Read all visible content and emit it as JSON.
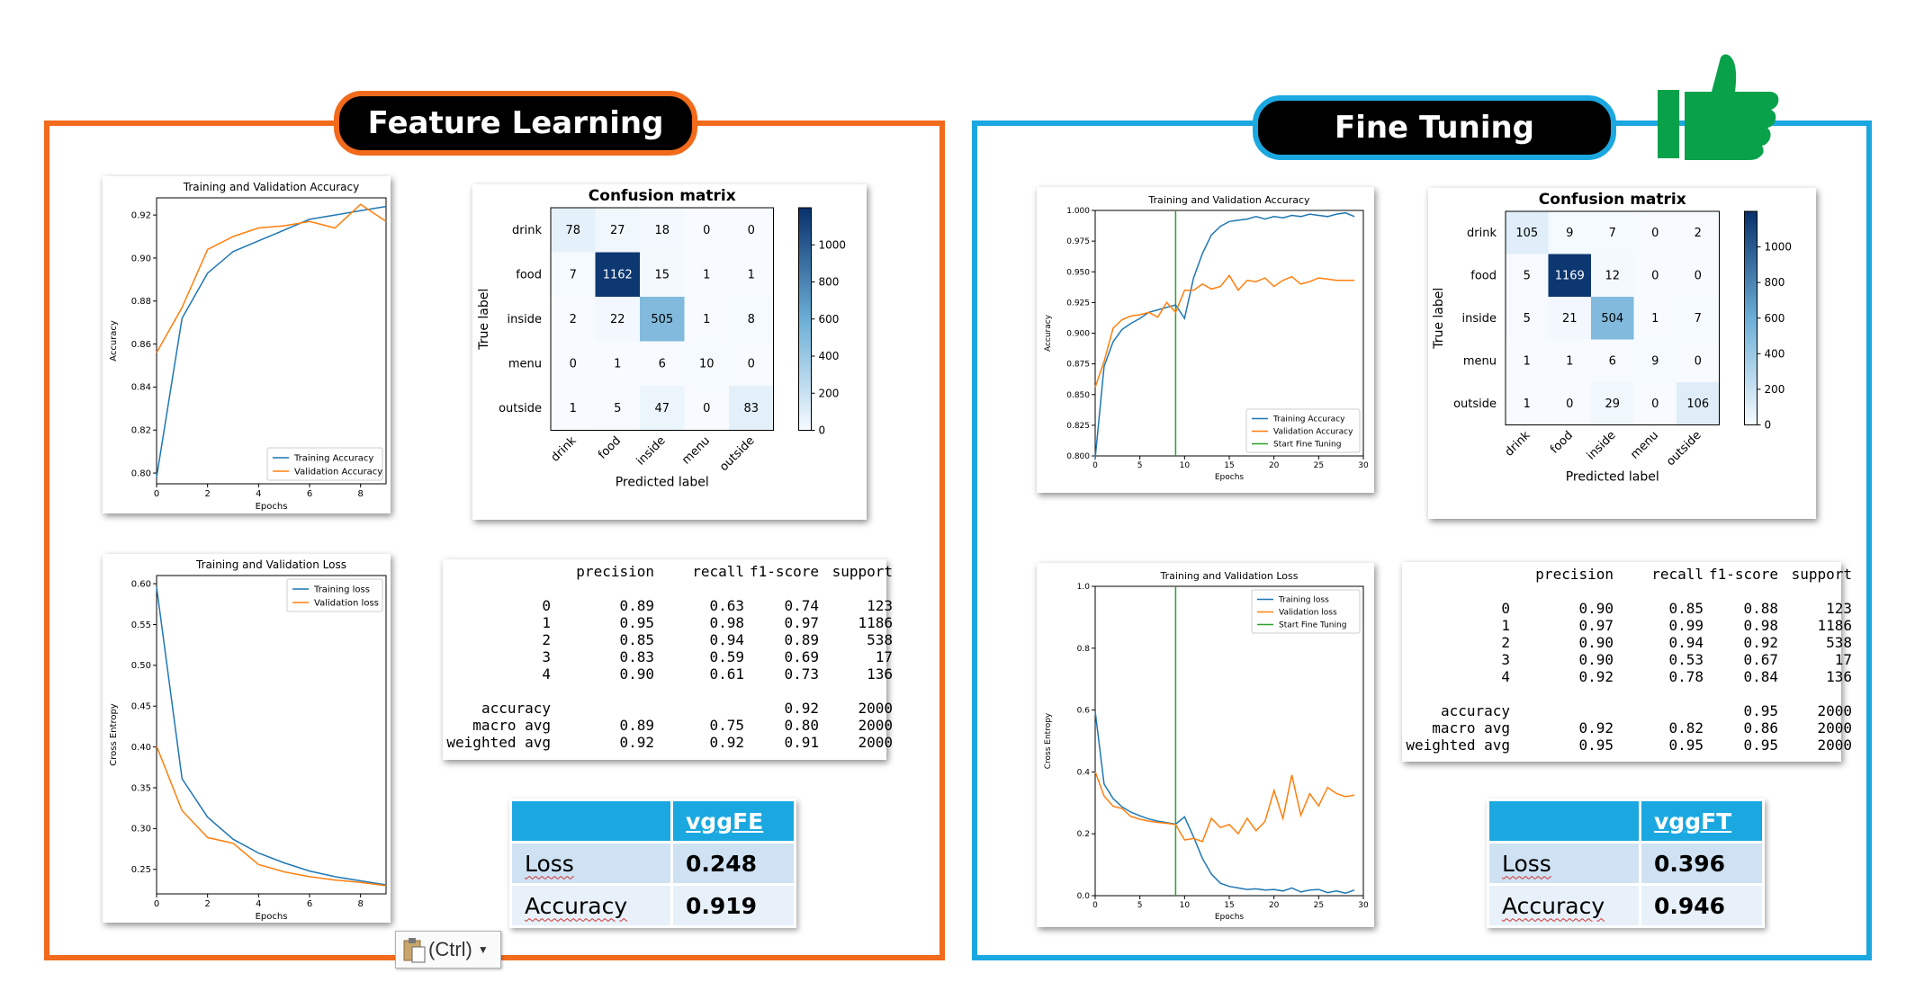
{
  "left": {
    "title": "Feature Learning",
    "acc_chart": {
      "title": "Training and Validation Accuracy",
      "xlabel": "Epochs",
      "ylabel": "Accuracy",
      "xticks": [
        "0",
        "2",
        "4",
        "6",
        "8"
      ],
      "yticks": [
        "0.80",
        "0.82",
        "0.84",
        "0.86",
        "0.88",
        "0.90",
        "0.92"
      ],
      "legend": [
        "Training Accuracy",
        "Validation Accuracy"
      ]
    },
    "loss_chart": {
      "title": "Training and Validation Loss",
      "xlabel": "Epochs",
      "ylabel": "Cross Entropy",
      "xticks": [
        "0",
        "2",
        "4",
        "6",
        "8"
      ],
      "yticks": [
        "0.25",
        "0.30",
        "0.35",
        "0.40",
        "0.45",
        "0.50",
        "0.55",
        "0.60"
      ],
      "legend": [
        "Training loss",
        "Validation loss"
      ]
    },
    "confusion": {
      "title": "Confusion matrix",
      "xlabel": "Predicted label",
      "ylabel": "True label",
      "labels": [
        "drink",
        "food",
        "inside",
        "menu",
        "outside"
      ],
      "colorbar_ticks": [
        "1000",
        "800",
        "600",
        "400",
        "200",
        "0"
      ],
      "matrix": [
        [
          78,
          27,
          18,
          0,
          0
        ],
        [
          7,
          1162,
          15,
          1,
          1
        ],
        [
          2,
          22,
          505,
          1,
          8
        ],
        [
          0,
          1,
          6,
          10,
          0
        ],
        [
          1,
          5,
          47,
          0,
          83
        ]
      ]
    },
    "report": {
      "headers": [
        "precision",
        "recall",
        "f1-score",
        "support"
      ],
      "rows": [
        [
          "0",
          "0.89",
          "0.63",
          "0.74",
          "123"
        ],
        [
          "1",
          "0.95",
          "0.98",
          "0.97",
          "1186"
        ],
        [
          "2",
          "0.85",
          "0.94",
          "0.89",
          "538"
        ],
        [
          "3",
          "0.83",
          "0.59",
          "0.69",
          "17"
        ],
        [
          "4",
          "0.90",
          "0.61",
          "0.73",
          "136"
        ]
      ],
      "summary": [
        [
          "accuracy",
          "",
          "",
          "0.92",
          "2000"
        ],
        [
          "macro avg",
          "0.89",
          "0.75",
          "0.80",
          "2000"
        ],
        [
          "weighted avg",
          "0.92",
          "0.92",
          "0.91",
          "2000"
        ]
      ]
    },
    "metrics": {
      "model": "vggFE",
      "loss_label": "Loss",
      "loss": "0.248",
      "acc_label": "Accuracy",
      "acc": "0.919"
    }
  },
  "right": {
    "title": "Fine Tuning",
    "acc_chart": {
      "title": "Training and Validation Accuracy",
      "xlabel": "Epochs",
      "ylabel": "Accuracy",
      "xticks": [
        "0",
        "5",
        "10",
        "15",
        "20",
        "25",
        "30"
      ],
      "yticks": [
        "0.800",
        "0.825",
        "0.850",
        "0.875",
        "0.900",
        "0.925",
        "0.950",
        "0.975",
        "1.000"
      ],
      "legend": [
        "Training Accuracy",
        "Validation Accuracy",
        "Start Fine Tuning"
      ]
    },
    "loss_chart": {
      "title": "Training and Validation Loss",
      "xlabel": "Epochs",
      "ylabel": "Cross Entropy",
      "xticks": [
        "0",
        "5",
        "10",
        "15",
        "20",
        "25",
        "30"
      ],
      "yticks": [
        "0.0",
        "0.2",
        "0.4",
        "0.6",
        "0.8",
        "1.0"
      ],
      "legend": [
        "Training loss",
        "Validation loss",
        "Start Fine Tuning"
      ]
    },
    "confusion": {
      "title": "Confusion matrix",
      "xlabel": "Predicted label",
      "ylabel": "True label",
      "labels": [
        "drink",
        "food",
        "inside",
        "menu",
        "outside"
      ],
      "colorbar_ticks": [
        "1000",
        "800",
        "600",
        "400",
        "200",
        "0"
      ],
      "matrix": [
        [
          105,
          9,
          7,
          0,
          2
        ],
        [
          5,
          1169,
          12,
          0,
          0
        ],
        [
          5,
          21,
          504,
          1,
          7
        ],
        [
          1,
          1,
          6,
          9,
          0
        ],
        [
          1,
          0,
          29,
          0,
          106
        ]
      ]
    },
    "report": {
      "headers": [
        "precision",
        "recall",
        "f1-score",
        "support"
      ],
      "rows": [
        [
          "0",
          "0.90",
          "0.85",
          "0.88",
          "123"
        ],
        [
          "1",
          "0.97",
          "0.99",
          "0.98",
          "1186"
        ],
        [
          "2",
          "0.90",
          "0.94",
          "0.92",
          "538"
        ],
        [
          "3",
          "0.90",
          "0.53",
          "0.67",
          "17"
        ],
        [
          "4",
          "0.92",
          "0.78",
          "0.84",
          "136"
        ]
      ],
      "summary": [
        [
          "accuracy",
          "",
          "",
          "0.95",
          "2000"
        ],
        [
          "macro avg",
          "0.92",
          "0.82",
          "0.86",
          "2000"
        ],
        [
          "weighted avg",
          "0.95",
          "0.95",
          "0.95",
          "2000"
        ]
      ]
    },
    "metrics": {
      "model": "vggFT",
      "loss_label": "Loss",
      "loss": "0.396",
      "acc_label": "Accuracy",
      "acc": "0.946"
    }
  },
  "paste_button": {
    "label": "(Ctrl)"
  },
  "colors": {
    "orange": "#f26a1b",
    "blue": "#1ba8e0",
    "training": "#1f77b4",
    "validation": "#ff7f0e",
    "finetune": "#2ca02c",
    "thumb": "#0aa14b"
  },
  "chart_data": [
    {
      "type": "line",
      "id": "fe-acc",
      "title": "Training and Validation Accuracy",
      "xlabel": "Epochs",
      "ylabel": "Accuracy",
      "xlim": [
        0,
        9
      ],
      "ylim": [
        0.795,
        0.928
      ],
      "series": [
        {
          "name": "Training Accuracy",
          "x": [
            0,
            1,
            2,
            3,
            4,
            5,
            6,
            7,
            8,
            9
          ],
          "values": [
            0.798,
            0.872,
            0.893,
            0.903,
            0.908,
            0.913,
            0.918,
            0.92,
            0.922,
            0.924
          ]
        },
        {
          "name": "Validation Accuracy",
          "x": [
            0,
            1,
            2,
            3,
            4,
            5,
            6,
            7,
            8,
            9
          ],
          "values": [
            0.856,
            0.877,
            0.904,
            0.91,
            0.914,
            0.915,
            0.917,
            0.914,
            0.925,
            0.917
          ]
        }
      ]
    },
    {
      "type": "line",
      "id": "fe-loss",
      "title": "Training and Validation Loss",
      "xlabel": "Epochs",
      "ylabel": "Cross Entropy",
      "xlim": [
        0,
        9
      ],
      "ylim": [
        0.22,
        0.61
      ],
      "series": [
        {
          "name": "Training loss",
          "x": [
            0,
            1,
            2,
            3,
            4,
            5,
            6,
            7,
            8,
            9
          ],
          "values": [
            0.596,
            0.361,
            0.314,
            0.287,
            0.27,
            0.258,
            0.248,
            0.241,
            0.236,
            0.231
          ]
        },
        {
          "name": "Validation loss",
          "x": [
            0,
            1,
            2,
            3,
            4,
            5,
            6,
            7,
            8,
            9
          ],
          "values": [
            0.401,
            0.322,
            0.289,
            0.282,
            0.256,
            0.247,
            0.241,
            0.237,
            0.234,
            0.23
          ]
        }
      ]
    },
    {
      "type": "line",
      "id": "ft-acc",
      "title": "Training and Validation Accuracy",
      "xlabel": "Epochs",
      "ylabel": "Accuracy",
      "xlim": [
        0,
        30
      ],
      "ylim": [
        0.8,
        1.0
      ],
      "vline": 9,
      "series": [
        {
          "name": "Training Accuracy",
          "x": [
            0,
            1,
            2,
            3,
            4,
            5,
            6,
            7,
            8,
            9,
            10,
            11,
            12,
            13,
            14,
            15,
            16,
            17,
            18,
            19,
            20,
            21,
            22,
            23,
            24,
            25,
            26,
            27,
            28,
            29
          ],
          "values": [
            0.798,
            0.873,
            0.893,
            0.903,
            0.908,
            0.912,
            0.917,
            0.919,
            0.921,
            0.923,
            0.912,
            0.945,
            0.965,
            0.98,
            0.987,
            0.991,
            0.992,
            0.993,
            0.995,
            0.993,
            0.995,
            0.994,
            0.996,
            0.995,
            0.997,
            0.996,
            0.995,
            0.997,
            0.998,
            0.995
          ]
        },
        {
          "name": "Validation Accuracy",
          "x": [
            0,
            1,
            2,
            3,
            4,
            5,
            6,
            7,
            8,
            9,
            10,
            11,
            12,
            13,
            14,
            15,
            16,
            17,
            18,
            19,
            20,
            21,
            22,
            23,
            24,
            25,
            26,
            27,
            28,
            29
          ],
          "values": [
            0.856,
            0.877,
            0.904,
            0.911,
            0.914,
            0.915,
            0.917,
            0.913,
            0.925,
            0.917,
            0.935,
            0.935,
            0.94,
            0.936,
            0.938,
            0.947,
            0.935,
            0.943,
            0.942,
            0.945,
            0.938,
            0.943,
            0.946,
            0.94,
            0.942,
            0.945,
            0.944,
            0.943,
            0.943,
            0.943
          ]
        },
        {
          "name": "Start Fine Tuning",
          "x": [
            9,
            9
          ],
          "values": [
            0.8,
            1.0
          ]
        }
      ]
    },
    {
      "type": "line",
      "id": "ft-loss",
      "title": "Training and Validation Loss",
      "xlabel": "Epochs",
      "ylabel": "Cross Entropy",
      "xlim": [
        0,
        30
      ],
      "ylim": [
        0.0,
        1.0
      ],
      "vline": 9,
      "series": [
        {
          "name": "Training loss",
          "x": [
            0,
            1,
            2,
            3,
            4,
            5,
            6,
            7,
            8,
            9,
            10,
            11,
            12,
            13,
            14,
            15,
            16,
            17,
            18,
            19,
            20,
            21,
            22,
            23,
            24,
            25,
            26,
            27,
            28,
            29
          ],
          "values": [
            0.596,
            0.361,
            0.314,
            0.287,
            0.27,
            0.258,
            0.248,
            0.241,
            0.236,
            0.231,
            0.255,
            0.19,
            0.12,
            0.07,
            0.04,
            0.03,
            0.025,
            0.02,
            0.022,
            0.018,
            0.02,
            0.015,
            0.025,
            0.012,
            0.018,
            0.02,
            0.01,
            0.015,
            0.008,
            0.018
          ]
        },
        {
          "name": "Validation loss",
          "x": [
            0,
            1,
            2,
            3,
            4,
            5,
            6,
            7,
            8,
            9,
            10,
            11,
            12,
            13,
            14,
            15,
            16,
            17,
            18,
            19,
            20,
            21,
            22,
            23,
            24,
            25,
            26,
            27,
            28,
            29
          ],
          "values": [
            0.401,
            0.322,
            0.289,
            0.282,
            0.256,
            0.247,
            0.241,
            0.237,
            0.234,
            0.23,
            0.18,
            0.185,
            0.175,
            0.25,
            0.22,
            0.23,
            0.2,
            0.25,
            0.21,
            0.24,
            0.34,
            0.25,
            0.39,
            0.26,
            0.33,
            0.29,
            0.35,
            0.33,
            0.32,
            0.325
          ]
        },
        {
          "name": "Start Fine Tuning",
          "x": [
            9,
            9
          ],
          "values": [
            0.0,
            1.0
          ]
        }
      ]
    },
    {
      "type": "heatmap",
      "id": "fe-cm",
      "title": "Confusion matrix",
      "xlabel": "Predicted label",
      "ylabel": "True label",
      "labels": [
        "drink",
        "food",
        "inside",
        "menu",
        "outside"
      ],
      "values": [
        [
          78,
          27,
          18,
          0,
          0
        ],
        [
          7,
          1162,
          15,
          1,
          1
        ],
        [
          2,
          22,
          505,
          1,
          8
        ],
        [
          0,
          1,
          6,
          10,
          0
        ],
        [
          1,
          5,
          47,
          0,
          83
        ]
      ]
    },
    {
      "type": "heatmap",
      "id": "ft-cm",
      "title": "Confusion matrix",
      "xlabel": "Predicted label",
      "ylabel": "True label",
      "labels": [
        "drink",
        "food",
        "inside",
        "menu",
        "outside"
      ],
      "values": [
        [
          105,
          9,
          7,
          0,
          2
        ],
        [
          5,
          1169,
          12,
          0,
          0
        ],
        [
          5,
          21,
          504,
          1,
          7
        ],
        [
          1,
          1,
          6,
          9,
          0
        ],
        [
          1,
          0,
          29,
          0,
          106
        ]
      ]
    }
  ]
}
